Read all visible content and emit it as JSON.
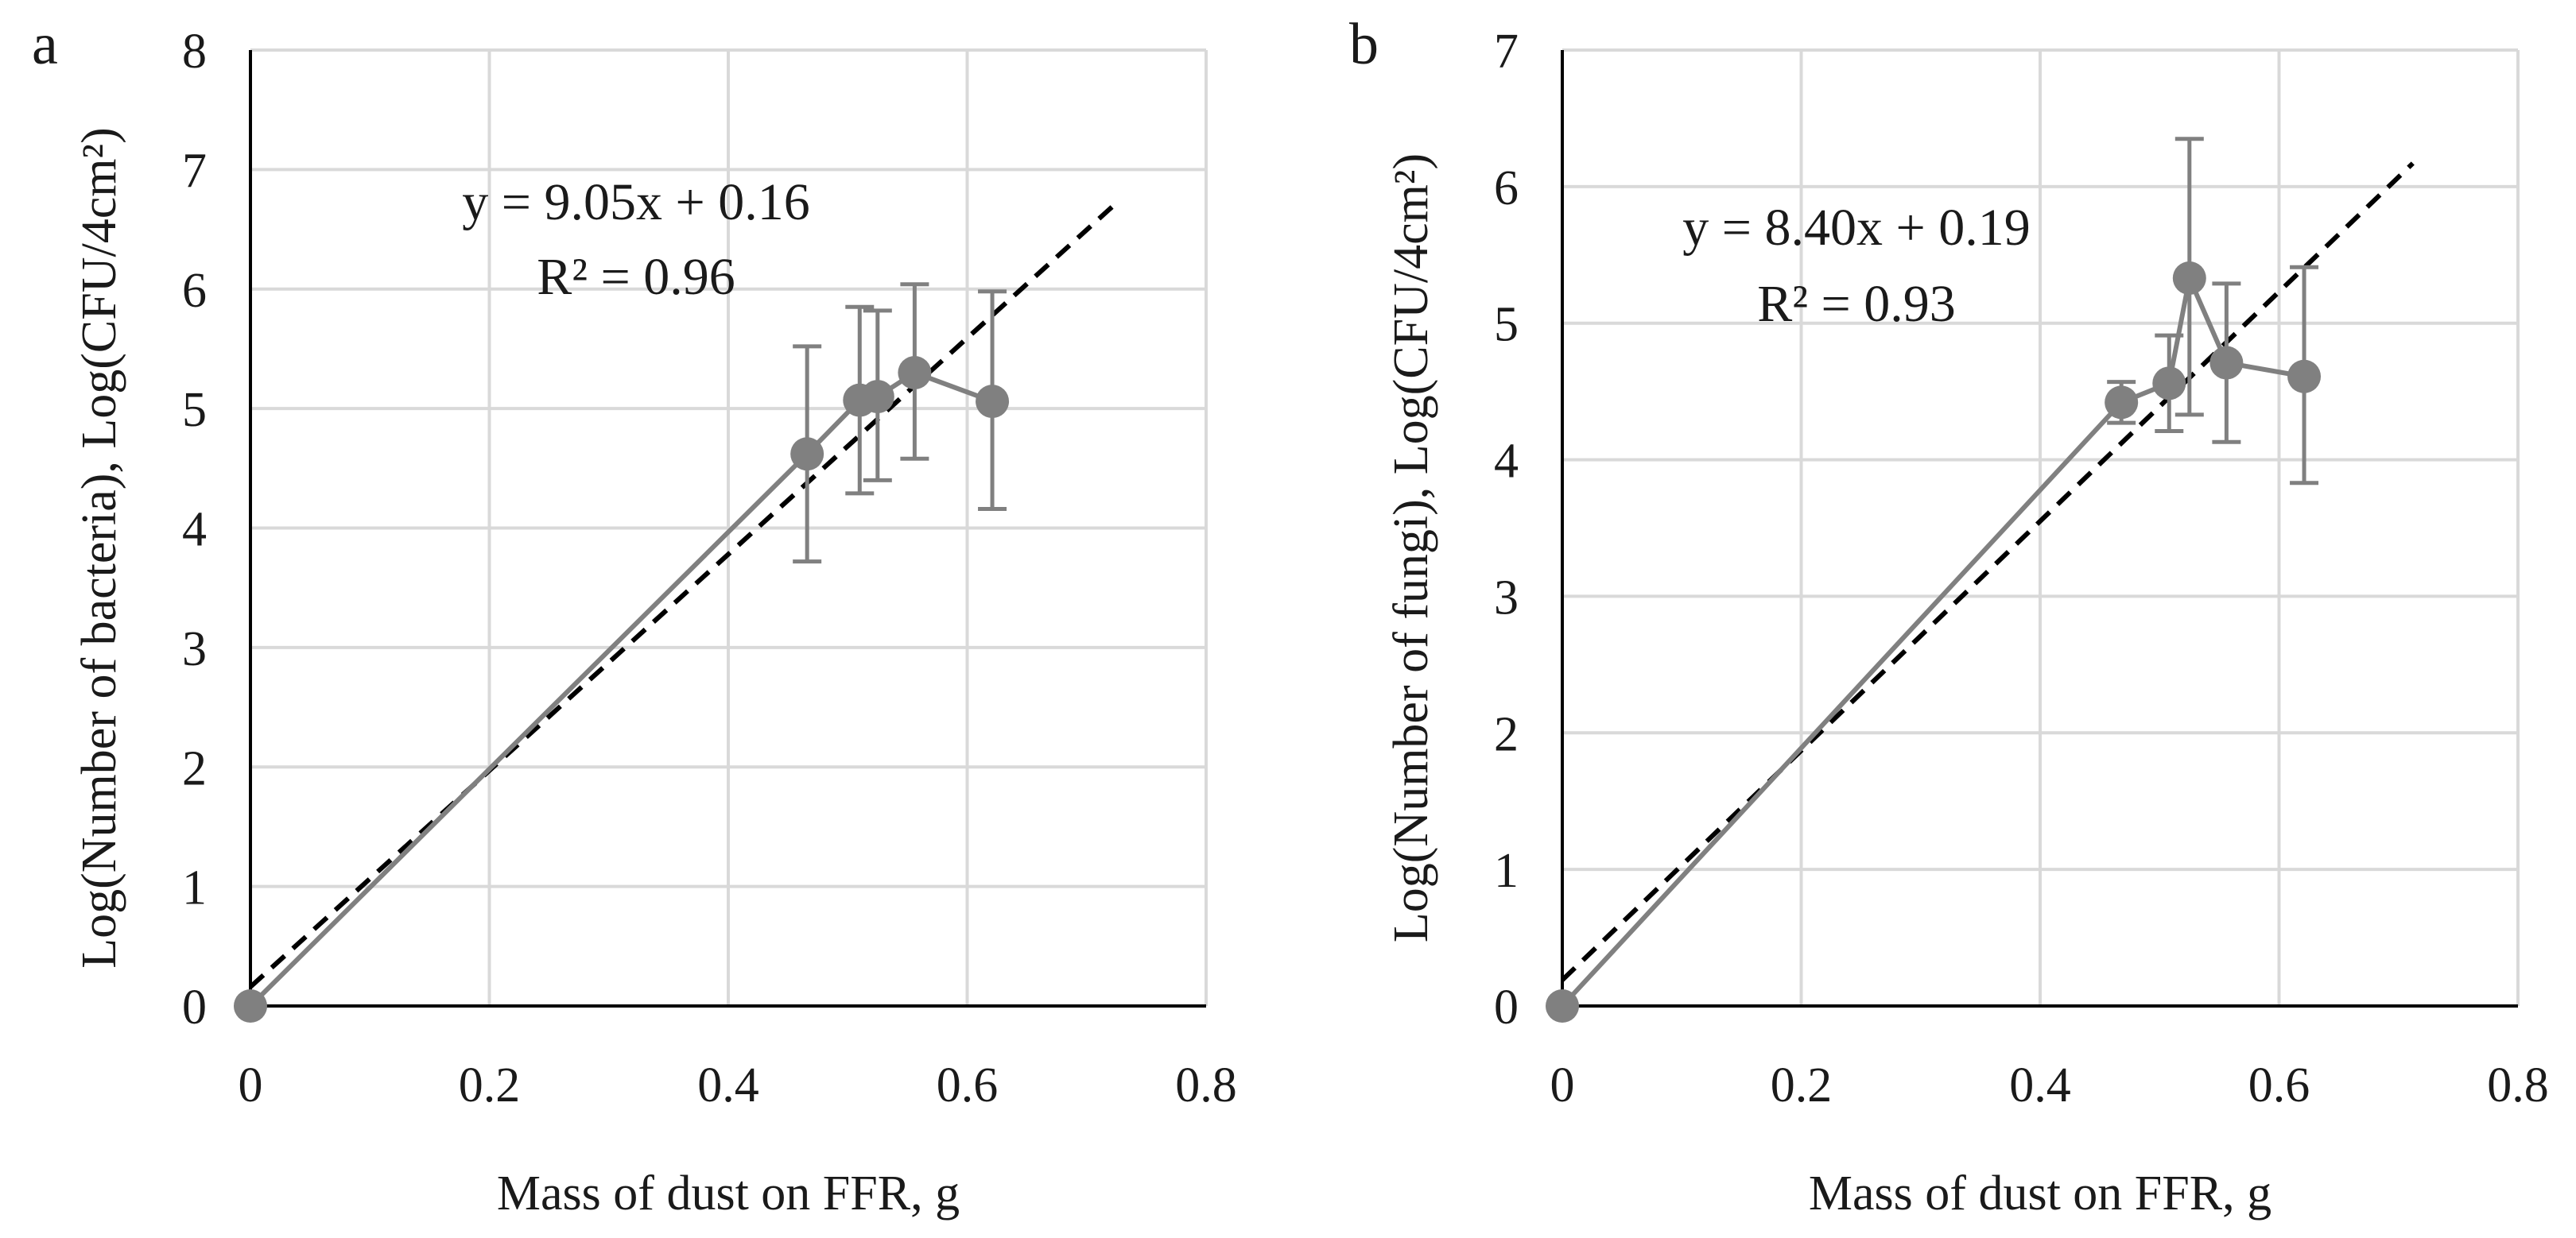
{
  "colors": {
    "series": "#808080",
    "trend": "#000000",
    "grid": "#d9d9d9",
    "axis": "#000000"
  },
  "chart_data": [
    {
      "type": "line",
      "panel_label": "a",
      "title": "",
      "xlabel": "Mass of dust on FFR, g",
      "ylabel": "Log(Number  of bacteria),  Log(CFU/4cm²)",
      "xlim": [
        0,
        0.8
      ],
      "ylim": [
        0,
        8
      ],
      "xticks": [
        0,
        0.2,
        0.4,
        0.6,
        0.8
      ],
      "xtick_labels": [
        "0",
        "0.2",
        "0.4",
        "0.6",
        "0.8"
      ],
      "yticks": [
        0,
        1,
        2,
        3,
        4,
        5,
        6,
        7,
        8
      ],
      "ytick_labels": [
        "0",
        "1",
        "2",
        "3",
        "4",
        "5",
        "6",
        "7",
        "8"
      ],
      "grid": true,
      "series": [
        {
          "name": "bacteria",
          "x": [
            0,
            0.466,
            0.51,
            0.525,
            0.556,
            0.621
          ],
          "y": [
            0,
            4.62,
            5.07,
            5.1,
            5.3,
            5.06
          ],
          "err_low": [
            0,
            0.9,
            0.78,
            0.7,
            0.72,
            0.9
          ],
          "err_high": [
            0,
            0.9,
            0.78,
            0.72,
            0.74,
            0.92
          ]
        }
      ],
      "trendline": {
        "slope": 9.05,
        "intercept": 0.16,
        "x_end": 0.725
      },
      "annotations": [
        "y = 9.05x + 0.16",
        "R² = 0.96"
      ]
    },
    {
      "type": "line",
      "panel_label": "b",
      "title": "",
      "xlabel": "Mass of dust on FFR, g",
      "ylabel": "Log(Number  of fungi),  Log(CFU/4cm²)",
      "xlim": [
        0,
        0.8
      ],
      "ylim": [
        0,
        7
      ],
      "xticks": [
        0,
        0.2,
        0.4,
        0.6,
        0.8
      ],
      "xtick_labels": [
        "0",
        "0.2",
        "0.4",
        "0.6",
        "0.8"
      ],
      "yticks": [
        0,
        1,
        2,
        3,
        4,
        5,
        6,
        7
      ],
      "ytick_labels": [
        "0",
        "1",
        "2",
        "3",
        "4",
        "5",
        "6",
        "7"
      ],
      "grid": true,
      "series": [
        {
          "name": "fungi",
          "x": [
            0,
            0.468,
            0.508,
            0.525,
            0.556,
            0.621
          ],
          "y": [
            0,
            4.42,
            4.56,
            5.33,
            4.71,
            4.61
          ],
          "err_low": [
            0,
            0.15,
            0.35,
            1.0,
            0.58,
            0.78
          ],
          "err_high": [
            0,
            0.15,
            0.35,
            1.02,
            0.58,
            0.8
          ]
        }
      ],
      "trendline": {
        "slope": 8.4,
        "intercept": 0.19,
        "x_end": 0.712
      },
      "annotations": [
        "y = 8.40x + 0.19",
        "R² = 0.93"
      ]
    }
  ]
}
